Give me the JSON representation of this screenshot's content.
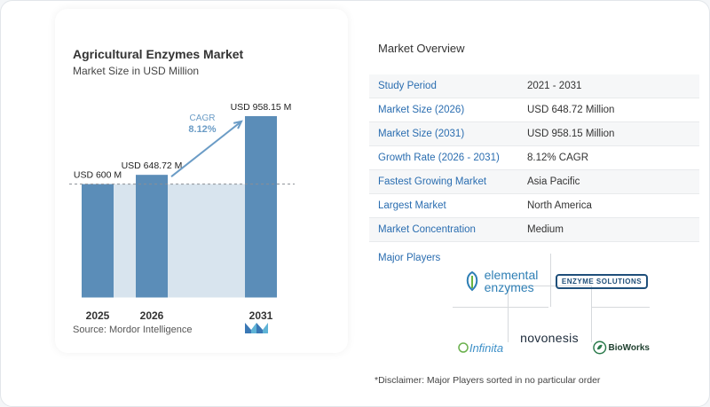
{
  "left_panel": {
    "title": "Agricultural Enzymes Market",
    "subtitle": "Market Size in USD Million",
    "source": "Source:  Mordor Intelligence",
    "cagr_label": "CAGR",
    "cagr_value": "8.12%"
  },
  "chart_data": {
    "type": "bar",
    "title": "Agricultural Enzymes Market",
    "subtitle": "Market Size in USD Million",
    "categories": [
      "2025",
      "2026",
      "2031"
    ],
    "values": [
      600,
      648.72,
      958.15
    ],
    "data_labels": [
      "USD 600 M",
      "USD 648.72 M",
      "USD 958.15 M"
    ],
    "xlabel": "",
    "ylabel": "",
    "grid": false,
    "annotation": "CAGR 8.12%",
    "colors": {
      "bar": "#5b8db8",
      "highlight_area": "#d8e4ee",
      "arrow": "#6b9cc6",
      "cagr_text": "#6b9cc6"
    }
  },
  "overview": {
    "title": "Market Overview",
    "rows": [
      {
        "label": "Study Period",
        "value": "2021 - 2031"
      },
      {
        "label": "Market Size (2026)",
        "value": "USD 648.72 Million"
      },
      {
        "label": "Market Size (2031)",
        "value": "USD 958.15 Million"
      },
      {
        "label": "Growth Rate (2026 - 2031)",
        "value": "8.12% CAGR"
      },
      {
        "label": "Fastest Growing Market",
        "value": "Asia Pacific"
      },
      {
        "label": "Largest Market",
        "value": "North America"
      },
      {
        "label": "Market Concentration",
        "value": "Medium"
      }
    ]
  },
  "players": {
    "title": "Major Players",
    "logos": {
      "elemental_line1": "elemental",
      "elemental_line2": "enzymes",
      "enzyme_solutions": "ENZYME SOLUTIONS",
      "infinita": "Infinita",
      "novonesis": "novonesis",
      "bioworks": "BioWorks"
    }
  },
  "disclaimer": "*Disclaimer: Major Players sorted in no particular order",
  "colors": {
    "accent_blue": "#2a6db0",
    "row_alt": "#f6f7f8"
  }
}
